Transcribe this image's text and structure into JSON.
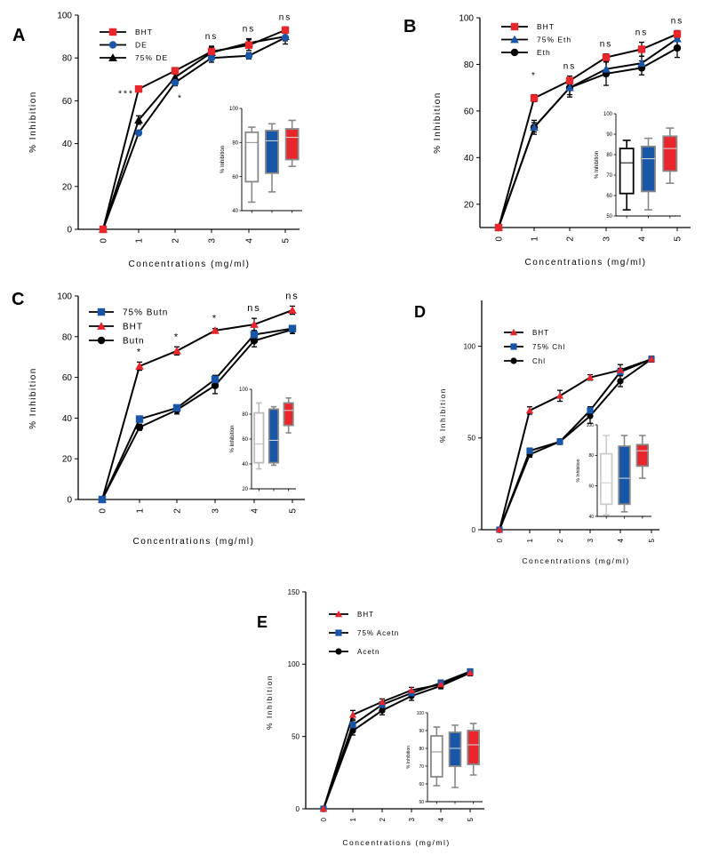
{
  "chart_data": [
    {
      "panel": "A",
      "type": "line",
      "x": [
        0,
        1,
        2,
        3,
        4,
        5
      ],
      "xlabel": "Concentrations (mg/ml)",
      "ylabel": "% Inhibition",
      "ylim": [
        0,
        100
      ],
      "yticks": [
        0,
        20,
        40,
        60,
        80,
        100
      ],
      "legend_placement": "top-left",
      "series": [
        {
          "name": "BHT",
          "marker": "square",
          "color": "#e8262c",
          "values": [
            0,
            65.5,
            74,
            83,
            86,
            93
          ],
          "errors": [
            0,
            1.2,
            1.5,
            2.5,
            2.5,
            1.5
          ]
        },
        {
          "name": "DE",
          "marker": "circle",
          "color": "#1857a8",
          "values": [
            0,
            45,
            68.5,
            80,
            81,
            89.5
          ],
          "errors": [
            0,
            1,
            1.5,
            2,
            1.5,
            3
          ]
        },
        {
          "name": "75% DE",
          "marker": "triangle",
          "color": "#000000",
          "values": [
            0,
            51,
            71,
            82.5,
            87,
            90
          ],
          "errors": [
            0,
            2,
            1.5,
            2.5,
            2,
            2
          ]
        }
      ],
      "annotations": [
        {
          "x": 1,
          "text": "***"
        },
        {
          "x": 2,
          "text": "*"
        },
        {
          "x": 3,
          "text": "ns"
        },
        {
          "x": 4,
          "text": "ns"
        },
        {
          "x": 5,
          "text": "ns"
        }
      ],
      "inset": {
        "type": "box",
        "ylabel": "% Inhibition",
        "ylim": [
          40,
          100
        ],
        "yticks": [
          40,
          60,
          80,
          100
        ],
        "boxes": [
          {
            "color": "#888888",
            "fill": "#ffffff",
            "min": 45,
            "q1": 57,
            "median": 80,
            "q3": 86,
            "max": 89
          },
          {
            "color": "#888888",
            "fill": "#1857a8",
            "min": 51,
            "q1": 62,
            "median": 81,
            "q3": 87,
            "max": 91
          },
          {
            "color": "#888888",
            "fill": "#e8262c",
            "min": 66,
            "q1": 70,
            "median": 83,
            "q3": 88,
            "max": 93
          }
        ]
      }
    },
    {
      "panel": "B",
      "type": "line",
      "x": [
        0,
        1,
        2,
        3,
        4,
        5
      ],
      "xlabel": "Concentrations (mg/ml)",
      "ylabel": "% Inhibition",
      "ylim": [
        10,
        100
      ],
      "yticks": [
        20,
        40,
        60,
        80,
        100
      ],
      "legend_placement": "top-left",
      "series": [
        {
          "name": "BHT",
          "marker": "square",
          "color": "#e8262c",
          "values": [
            10,
            65.5,
            73,
            83,
            86.5,
            93
          ],
          "errors": [
            0,
            1.5,
            2,
            1.5,
            3,
            1.5
          ]
        },
        {
          "name": "75% Eth",
          "marker": "triangle",
          "color": "#1857a8",
          "values": [
            10,
            53,
            70,
            78,
            80.5,
            91
          ],
          "errors": [
            0,
            2,
            3,
            3,
            3,
            3
          ]
        },
        {
          "name": "Eth",
          "marker": "circle",
          "color": "#000000",
          "values": [
            10,
            53,
            70,
            76,
            78.5,
            87
          ],
          "errors": [
            0,
            3,
            4,
            5,
            3,
            4
          ]
        }
      ],
      "annotations": [
        {
          "x": 1,
          "text": "*"
        },
        {
          "x": 2,
          "text": "ns"
        },
        {
          "x": 3,
          "text": "ns"
        },
        {
          "x": 4,
          "text": "ns"
        },
        {
          "x": 5,
          "text": "ns"
        }
      ],
      "inset": {
        "type": "box",
        "ylabel": "% Inhibition",
        "ylim": [
          50,
          100
        ],
        "yticks": [
          50,
          60,
          70,
          80,
          90,
          100
        ],
        "boxes": [
          {
            "color": "#000000",
            "fill": "#ffffff",
            "min": 53,
            "q1": 61,
            "median": 76,
            "q3": 83,
            "max": 87
          },
          {
            "color": "#888888",
            "fill": "#1857a8",
            "min": 53,
            "q1": 62,
            "median": 78,
            "q3": 84,
            "max": 88
          },
          {
            "color": "#888888",
            "fill": "#e8262c",
            "min": 66,
            "q1": 72,
            "median": 83,
            "q3": 89,
            "max": 93
          }
        ]
      }
    },
    {
      "panel": "C",
      "type": "line",
      "x": [
        0,
        1,
        2,
        3,
        4,
        5
      ],
      "xlabel": "Concentrations (mg/ml)",
      "ylabel": "% Inhibition",
      "ylim": [
        0,
        100
      ],
      "yticks": [
        0,
        20,
        40,
        60,
        80,
        100
      ],
      "legend_placement": "top-left",
      "series": [
        {
          "name": "75% Butn",
          "marker": "square",
          "color": "#1857a8",
          "values": [
            0,
            39.5,
            45,
            59,
            81,
            84
          ],
          "errors": [
            0,
            1.5,
            1.5,
            2,
            2,
            1.5
          ]
        },
        {
          "name": "BHT",
          "marker": "triangle",
          "color": "#e8262c",
          "values": [
            0,
            65.5,
            73,
            83,
            86,
            93
          ],
          "errors": [
            0,
            2,
            2,
            1,
            3,
            2
          ]
        },
        {
          "name": "Butn",
          "marker": "circle",
          "color": "#000000",
          "values": [
            0,
            35.5,
            44,
            56,
            78,
            83.5
          ],
          "errors": [
            0,
            1.5,
            2,
            4,
            3,
            2
          ]
        }
      ],
      "annotations": [
        {
          "x": 1,
          "text": "*"
        },
        {
          "x": 2,
          "text": "*"
        },
        {
          "x": 3,
          "text": "*"
        },
        {
          "x": 4,
          "text": "ns"
        },
        {
          "x": 5,
          "text": "ns"
        }
      ],
      "inset": {
        "type": "box",
        "ylabel": "% Inhibition",
        "ylim": [
          20,
          100
        ],
        "yticks": [
          20,
          40,
          60,
          80,
          100
        ],
        "boxes": [
          {
            "color": "#bbbbbb",
            "fill": "#ffffff",
            "min": 36,
            "q1": 41,
            "median": 56,
            "q3": 81,
            "max": 89
          },
          {
            "color": "#888888",
            "fill": "#1857a8",
            "min": 39,
            "q1": 41,
            "median": 59,
            "q3": 84,
            "max": 86
          },
          {
            "color": "#888888",
            "fill": "#e8262c",
            "min": 65,
            "q1": 71,
            "median": 83,
            "q3": 89,
            "max": 93
          }
        ]
      }
    },
    {
      "panel": "D",
      "type": "line",
      "x": [
        0,
        1,
        2,
        3,
        4,
        5
      ],
      "xlabel": "Concentrations (mg/ml)",
      "ylabel": "% Inhibition",
      "ylim": [
        0,
        125
      ],
      "yticks": [
        0,
        50,
        100
      ],
      "legend_placement": "top-left",
      "series": [
        {
          "name": "BHT",
          "marker": "triangle",
          "color": "#e8262c",
          "values": [
            0,
            65,
            73,
            83,
            87,
            93
          ],
          "errors": [
            0,
            2,
            3,
            1.5,
            3,
            1.5
          ]
        },
        {
          "name": "75% Chl",
          "marker": "square",
          "color": "#1857a8",
          "values": [
            0,
            43,
            48,
            65,
            86,
            93
          ],
          "errors": [
            0,
            1.5,
            1.5,
            2,
            2,
            1.5
          ]
        },
        {
          "name": "Chl",
          "marker": "circle",
          "color": "#000000",
          "values": [
            0,
            41,
            48,
            62,
            81,
            93
          ],
          "errors": [
            0,
            1.5,
            1.5,
            4,
            3,
            1.5
          ]
        }
      ],
      "inset": {
        "type": "box",
        "ylabel": "% Inhibition",
        "ylim": [
          40,
          100
        ],
        "yticks": [
          40,
          60,
          80,
          100
        ],
        "boxes": [
          {
            "color": "#cccccc",
            "fill": "#ffffff",
            "min": 41,
            "q1": 48,
            "median": 62,
            "q3": 81,
            "max": 93
          },
          {
            "color": "#888888",
            "fill": "#1857a8",
            "min": 43,
            "q1": 48,
            "median": 65,
            "q3": 86,
            "max": 93
          },
          {
            "color": "#888888",
            "fill": "#e8262c",
            "min": 65,
            "q1": 73,
            "median": 83,
            "q3": 87,
            "max": 93
          }
        ]
      }
    },
    {
      "panel": "E",
      "type": "line",
      "x": [
        0,
        1,
        2,
        3,
        4,
        5
      ],
      "xlabel": "Concentrations (mg/ml)",
      "ylabel": "% Inhibition",
      "ylim": [
        0,
        150
      ],
      "yticks": [
        0,
        50,
        100,
        150
      ],
      "legend_placement": "top-left",
      "series": [
        {
          "name": "BHT",
          "marker": "triangle",
          "color": "#e8262c",
          "values": [
            0,
            65,
            74,
            82,
            86,
            94
          ],
          "errors": [
            0,
            3,
            2,
            2,
            2,
            2
          ]
        },
        {
          "name": "75% Acetn",
          "marker": "square",
          "color": "#1857a8",
          "values": [
            0,
            58,
            72,
            80,
            87,
            95
          ],
          "errors": [
            0,
            3,
            2,
            2,
            2,
            1.5
          ]
        },
        {
          "name": "Acetn",
          "marker": "circle",
          "color": "#000000",
          "values": [
            0,
            54,
            68,
            78,
            85,
            94
          ],
          "errors": [
            0,
            3,
            3,
            3,
            2,
            1.5
          ]
        }
      ],
      "inset": {
        "type": "box",
        "ylabel": "% Inhibition",
        "ylim": [
          50,
          100
        ],
        "yticks": [
          50,
          60,
          70,
          80,
          90,
          100
        ],
        "boxes": [
          {
            "color": "#888888",
            "fill": "#ffffff",
            "min": 59,
            "q1": 64,
            "median": 78,
            "q3": 87,
            "max": 92
          },
          {
            "color": "#888888",
            "fill": "#1857a8",
            "min": 58,
            "q1": 70,
            "median": 80,
            "q3": 89,
            "max": 93
          },
          {
            "color": "#888888",
            "fill": "#e8262c",
            "min": 65,
            "q1": 71,
            "median": 82,
            "q3": 90,
            "max": 94
          }
        ]
      }
    }
  ]
}
